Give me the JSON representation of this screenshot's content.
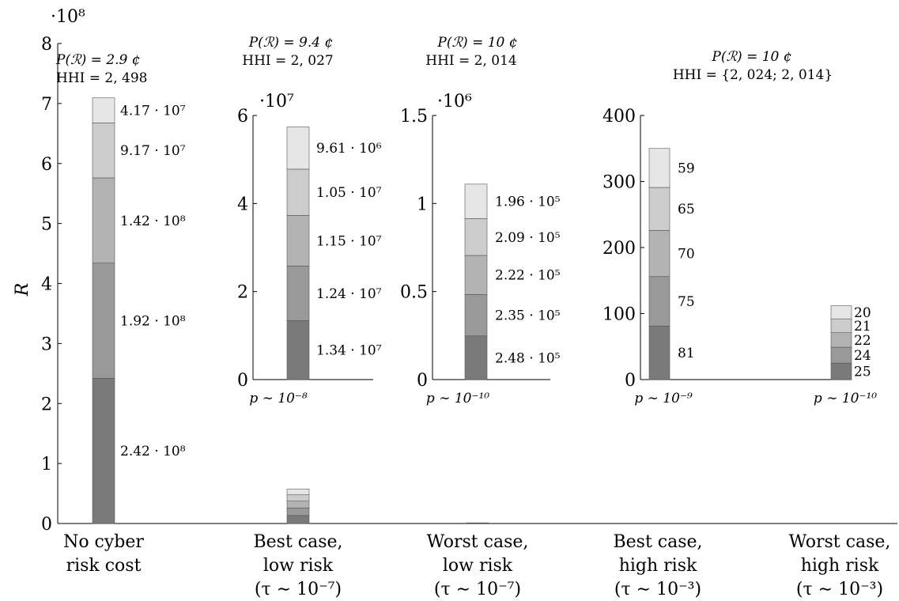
{
  "colors": {
    "seg1": "#7a7a7a",
    "seg2": "#999999",
    "seg3": "#b3b3b3",
    "seg4": "#cccccc",
    "seg5": "#e6e6e6",
    "edge": "#555555"
  },
  "chart_data": [
    {
      "id": "main",
      "type": "bar",
      "stacked": true,
      "ylabel": "R",
      "scale_label": "·10⁸",
      "ylim": [
        0,
        8
      ],
      "yticks": [
        "0",
        "1",
        "2",
        "3",
        "4",
        "5",
        "6",
        "7",
        "8"
      ],
      "categories": [
        [
          "No cyber",
          "risk cost"
        ],
        [
          "Best case,",
          "low risk",
          "(τ ∼ 10⁻⁷)"
        ],
        [
          "Worst case,",
          "low risk",
          "(τ ∼ 10⁻⁷)"
        ],
        [
          "Best case,",
          "high risk",
          "(τ ∼ 10⁻³)"
        ],
        [
          "Worst case,",
          "high risk",
          "(τ ∼ 10⁻³)"
        ]
      ],
      "segments": [
        [
          2.42,
          1.92,
          1.42,
          0.917,
          0.417
        ],
        [
          0.134,
          0.124,
          0.115,
          0.105,
          0.0961
        ],
        [
          0.00248,
          0.00235,
          0.00222,
          0.00209,
          0.00196
        ],
        [
          0,
          0,
          0,
          0,
          0
        ],
        [
          0,
          0,
          0,
          0,
          0
        ]
      ],
      "segment_labels": [
        "2.42 · 10⁸",
        "1.92 · 10⁸",
        "1.42 · 10⁸",
        "9.17 · 10⁷",
        "4.17 · 10⁷"
      ],
      "annotation": [
        "P(ℛ)  =  2.9 ¢",
        "HHI  =  2, 498"
      ]
    },
    {
      "id": "inset1",
      "type": "bar",
      "stacked": true,
      "scale_label": "·10⁷",
      "ylim": [
        0,
        6
      ],
      "yticks": [
        "0",
        "2",
        "4",
        "6"
      ],
      "xlabel": "p  ∼  10⁻⁸",
      "segments": [
        1.34,
        1.24,
        1.15,
        1.05,
        0.961
      ],
      "segment_labels": [
        "1.34 · 10⁷",
        "1.24 · 10⁷",
        "1.15 · 10⁷",
        "1.05 · 10⁷",
        "9.61 · 10⁶"
      ],
      "annotation": [
        "P(ℛ)  =  9.4 ¢",
        "HHI  =  2, 027"
      ]
    },
    {
      "id": "inset2",
      "type": "bar",
      "stacked": true,
      "scale_label": "·10⁶",
      "ylim": [
        0,
        1.5
      ],
      "yticks": [
        "0",
        "0.5",
        "1",
        "1.5"
      ],
      "xlabel": "p  ∼  10⁻¹⁰",
      "segments": [
        0.248,
        0.235,
        0.222,
        0.209,
        0.196
      ],
      "segment_labels": [
        "2.48 · 10⁵",
        "2.35 · 10⁵",
        "2.22 · 10⁵",
        "2.09 · 10⁵",
        "1.96 · 10⁵"
      ],
      "annotation": [
        "P(ℛ)  =  10 ¢",
        "HHI  =  2, 014"
      ]
    },
    {
      "id": "inset3",
      "type": "bar",
      "stacked": true,
      "ylim": [
        0,
        400
      ],
      "yticks": [
        "0",
        "100",
        "200",
        "300",
        "400"
      ],
      "xlabels": [
        "p  ∼  10⁻⁹",
        "p  ∼  10⁻¹⁰"
      ],
      "bars": [
        {
          "segments": [
            81,
            75,
            70,
            65,
            59
          ],
          "segment_labels": [
            "81",
            "75",
            "70",
            "65",
            "59"
          ]
        },
        {
          "segments": [
            25,
            24,
            22,
            21,
            20
          ],
          "segment_labels": [
            "25",
            "24",
            "22",
            "21",
            "20"
          ]
        }
      ],
      "annotation": [
        "P(ℛ)  =  10 ¢",
        "HHI  =  {2, 024; 2, 014}"
      ]
    }
  ]
}
